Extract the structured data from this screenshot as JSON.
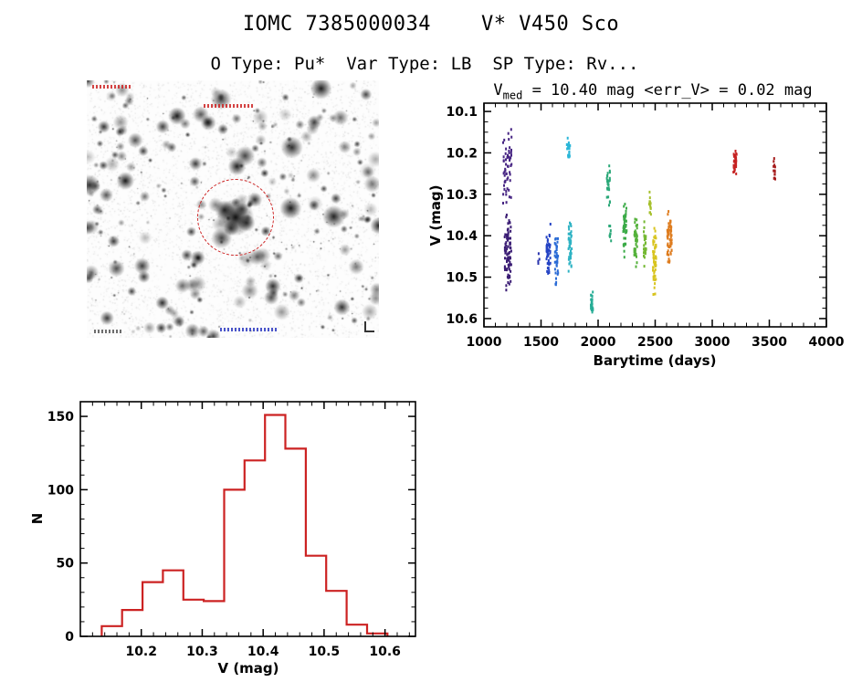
{
  "header": {
    "title": "IOMC 7385000034    V* V450 Sco",
    "subtitle": "O Type: Pu*  Var Type: LB  SP Type: Rv..."
  },
  "finder_chart": {
    "circle_color": "#cc2222",
    "annotations": [
      "red-label-top-left",
      "red-target-label",
      "blue-label-bottom",
      "dark-label-bottom-left"
    ]
  },
  "chart_data": [
    {
      "type": "scatter",
      "name": "lightcurve",
      "title_v": "V",
      "title_sub": "med",
      "title_rest": " = 10.40 mag <err_V> = 0.02 mag",
      "xlabel": "Barytime (days)",
      "ylabel": "V (mag)",
      "xlim": [
        1000,
        4000
      ],
      "ylim_top": 10.08,
      "ylim_bottom": 10.62,
      "y_axis_inverted": true,
      "xticks": [
        1000,
        1500,
        2000,
        2500,
        3000,
        3500,
        4000
      ],
      "yticks": [
        10.1,
        10.2,
        10.3,
        10.4,
        10.5,
        10.6
      ],
      "x_minor_step": 100,
      "y_minor_step": 0.025,
      "legend": "points color-coded by epoch (violet=early, red=late)",
      "clusters": [
        {
          "x": 1205,
          "x_spread": 75,
          "v_min": 10.12,
          "v_max": 10.34,
          "n": 55,
          "color": "#472583"
        },
        {
          "x": 1210,
          "x_spread": 60,
          "v_min": 10.34,
          "v_max": 10.54,
          "n": 85,
          "color": "#3b1d74"
        },
        {
          "x": 1480,
          "x_spread": 12,
          "v_min": 10.43,
          "v_max": 10.48,
          "n": 4,
          "color": "#2b35ae"
        },
        {
          "x": 1565,
          "x_spread": 35,
          "v_min": 10.37,
          "v_max": 10.51,
          "n": 45,
          "color": "#2443c4"
        },
        {
          "x": 1635,
          "x_spread": 30,
          "v_min": 10.4,
          "v_max": 10.52,
          "n": 35,
          "color": "#2a6bd6"
        },
        {
          "x": 1740,
          "x_spread": 28,
          "v_min": 10.16,
          "v_max": 10.22,
          "n": 24,
          "color": "#2ab6d8"
        },
        {
          "x": 1755,
          "x_spread": 30,
          "v_min": 10.35,
          "v_max": 10.5,
          "n": 48,
          "color": "#2fb3c4"
        },
        {
          "x": 1945,
          "x_spread": 20,
          "v_min": 10.52,
          "v_max": 10.6,
          "n": 26,
          "color": "#27ad96"
        },
        {
          "x": 2090,
          "x_spread": 28,
          "v_min": 10.22,
          "v_max": 10.33,
          "n": 26,
          "color": "#2aa878"
        },
        {
          "x": 2105,
          "x_spread": 18,
          "v_min": 10.36,
          "v_max": 10.43,
          "n": 10,
          "color": "#2aa878"
        },
        {
          "x": 2235,
          "x_spread": 30,
          "v_min": 10.31,
          "v_max": 10.46,
          "n": 45,
          "color": "#3cab48"
        },
        {
          "x": 2330,
          "x_spread": 28,
          "v_min": 10.34,
          "v_max": 10.48,
          "n": 40,
          "color": "#54b13a"
        },
        {
          "x": 2410,
          "x_spread": 24,
          "v_min": 10.36,
          "v_max": 10.5,
          "n": 30,
          "color": "#74b832"
        },
        {
          "x": 2455,
          "x_spread": 18,
          "v_min": 10.29,
          "v_max": 10.36,
          "n": 14,
          "color": "#a6c02c"
        },
        {
          "x": 2495,
          "x_spread": 30,
          "v_min": 10.35,
          "v_max": 10.56,
          "n": 55,
          "color": "#d8c41f"
        },
        {
          "x": 2625,
          "x_spread": 40,
          "v_min": 10.33,
          "v_max": 10.48,
          "n": 60,
          "color": "#de7c1e"
        },
        {
          "x": 3200,
          "x_spread": 30,
          "v_min": 10.18,
          "v_max": 10.27,
          "n": 32,
          "color": "#c62323"
        },
        {
          "x": 3545,
          "x_spread": 18,
          "v_min": 10.18,
          "v_max": 10.28,
          "n": 13,
          "color": "#a51b1b"
        }
      ]
    },
    {
      "type": "bar",
      "name": "magnitude-histogram",
      "xlabel": "V (mag)",
      "ylabel": "N",
      "bar_color": "#cc2222",
      "xlim": [
        10.1,
        10.65
      ],
      "ylim": [
        0,
        160
      ],
      "xticks": [
        10.2,
        10.3,
        10.4,
        10.5,
        10.6
      ],
      "yticks": [
        0,
        50,
        100,
        150
      ],
      "x_minor_step": 0.02,
      "y_minor_step": 10,
      "bin_start": 10.135,
      "bin_width": 0.0335,
      "counts": [
        7,
        18,
        37,
        45,
        25,
        24,
        100,
        120,
        151,
        128,
        55,
        31,
        8,
        2
      ]
    }
  ]
}
